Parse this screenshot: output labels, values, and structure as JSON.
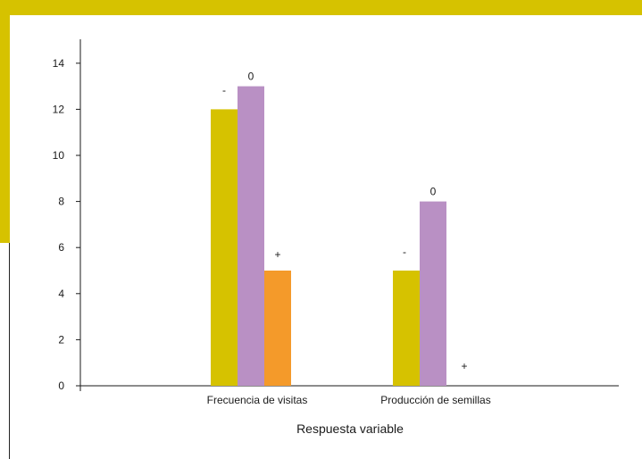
{
  "colors": {
    "frame": "#d6c200",
    "series_minus": "#d6c200",
    "series_zero": "#b990c4",
    "series_plus": "#f49a2a"
  },
  "chart_data": {
    "type": "bar",
    "title": "",
    "xlabel": "Respuesta variable",
    "ylabel": "",
    "ylim": [
      0,
      15
    ],
    "yticks": [
      0,
      2,
      4,
      6,
      8,
      10,
      12,
      14
    ],
    "categories": [
      "Frecuencia de visitas",
      "Producción de semillas"
    ],
    "series": [
      {
        "label": "-",
        "values": [
          12,
          5
        ],
        "color": "#d6c200"
      },
      {
        "label": "0",
        "values": [
          13,
          8
        ],
        "color": "#b990c4"
      },
      {
        "label": "+",
        "values": [
          5,
          0
        ],
        "color": "#f49a2a"
      }
    ],
    "grid": false,
    "legend": "none"
  }
}
